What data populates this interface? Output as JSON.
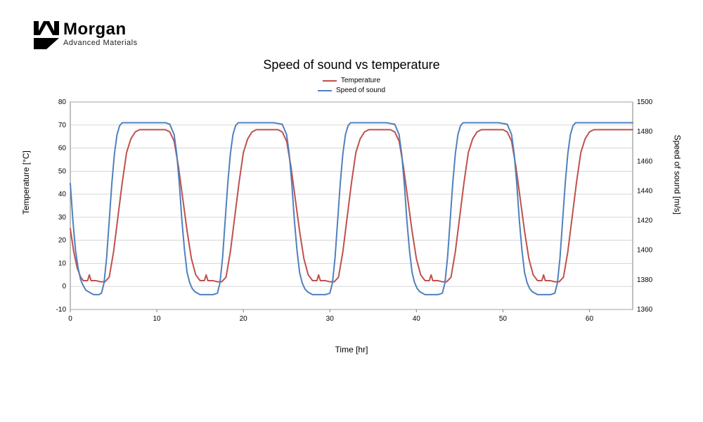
{
  "logo": {
    "name": "Morgan",
    "subtitle": "Advanced Materials"
  },
  "chart": {
    "type": "line",
    "title": "Speed of sound vs temperature",
    "title_fontsize": 18,
    "background_color": "#ffffff",
    "plot_border_color": "#808080",
    "grid_color": "#bfbfbf",
    "x_axis": {
      "label": "Time [hr]",
      "min": 0,
      "max": 65,
      "ticks": [
        0,
        10,
        20,
        30,
        40,
        50,
        60
      ],
      "label_fontsize": 12,
      "tick_fontsize": 10
    },
    "y_left": {
      "label": "Temperature [°C]",
      "min": -10,
      "max": 80,
      "ticks": [
        -10,
        0,
        10,
        20,
        30,
        40,
        50,
        60,
        70,
        80
      ],
      "label_fontsize": 12,
      "tick_fontsize": 10
    },
    "y_right": {
      "label": "Speed of sound [m/s]",
      "min": 1360,
      "max": 1500,
      "ticks": [
        1360,
        1380,
        1400,
        1420,
        1440,
        1460,
        1480,
        1500
      ],
      "label_fontsize": 12,
      "tick_fontsize": 10
    },
    "series": [
      {
        "name": "Temperature",
        "axis": "left",
        "color": "#c0504d",
        "line_width": 2,
        "data": [
          [
            0,
            25
          ],
          [
            0.4,
            15
          ],
          [
            0.8,
            8
          ],
          [
            1.2,
            4
          ],
          [
            1.5,
            2.5
          ],
          [
            2.0,
            2.5
          ],
          [
            2.2,
            5
          ],
          [
            2.4,
            2.5
          ],
          [
            3.0,
            2.5
          ],
          [
            3.5,
            2
          ],
          [
            4.0,
            2
          ],
          [
            4.5,
            4
          ],
          [
            5.0,
            15
          ],
          [
            5.5,
            30
          ],
          [
            6.0,
            45
          ],
          [
            6.5,
            58
          ],
          [
            7.0,
            64
          ],
          [
            7.5,
            67
          ],
          [
            8.0,
            68
          ],
          [
            8.5,
            68
          ],
          [
            9.0,
            68
          ],
          [
            9.5,
            68
          ],
          [
            10.0,
            68
          ],
          [
            10.5,
            68
          ],
          [
            11.0,
            68
          ],
          [
            11.5,
            67
          ],
          [
            12.0,
            63
          ],
          [
            12.5,
            52
          ],
          [
            13.0,
            38
          ],
          [
            13.5,
            24
          ],
          [
            14.0,
            12
          ],
          [
            14.5,
            5
          ],
          [
            15.0,
            2.5
          ],
          [
            15.5,
            2.5
          ],
          [
            15.7,
            5
          ],
          [
            15.9,
            2.5
          ],
          [
            16.5,
            2.5
          ],
          [
            17.0,
            2
          ],
          [
            17.5,
            2
          ],
          [
            18.0,
            4
          ],
          [
            18.5,
            15
          ],
          [
            19.0,
            30
          ],
          [
            19.5,
            45
          ],
          [
            20.0,
            58
          ],
          [
            20.5,
            64
          ],
          [
            21.0,
            67
          ],
          [
            21.5,
            68
          ],
          [
            22.0,
            68
          ],
          [
            22.5,
            68
          ],
          [
            23.0,
            68
          ],
          [
            23.5,
            68
          ],
          [
            24.0,
            68
          ],
          [
            24.5,
            67
          ],
          [
            25.0,
            63
          ],
          [
            25.5,
            52
          ],
          [
            26.0,
            38
          ],
          [
            26.5,
            24
          ],
          [
            27.0,
            12
          ],
          [
            27.5,
            5
          ],
          [
            28.0,
            2.5
          ],
          [
            28.5,
            2.5
          ],
          [
            28.7,
            5
          ],
          [
            28.9,
            2.5
          ],
          [
            29.5,
            2.5
          ],
          [
            30.0,
            2
          ],
          [
            30.5,
            2
          ],
          [
            31.0,
            4
          ],
          [
            31.5,
            15
          ],
          [
            32.0,
            30
          ],
          [
            32.5,
            45
          ],
          [
            33.0,
            58
          ],
          [
            33.5,
            64
          ],
          [
            34.0,
            67
          ],
          [
            34.5,
            68
          ],
          [
            35.0,
            68
          ],
          [
            35.5,
            68
          ],
          [
            36.0,
            68
          ],
          [
            36.5,
            68
          ],
          [
            37.0,
            68
          ],
          [
            37.5,
            67
          ],
          [
            38.0,
            63
          ],
          [
            38.5,
            52
          ],
          [
            39.0,
            38
          ],
          [
            39.5,
            24
          ],
          [
            40.0,
            12
          ],
          [
            40.5,
            5
          ],
          [
            41.0,
            2.5
          ],
          [
            41.5,
            2.5
          ],
          [
            41.7,
            5
          ],
          [
            41.9,
            2.5
          ],
          [
            42.5,
            2.5
          ],
          [
            43.0,
            2
          ],
          [
            43.5,
            2
          ],
          [
            44.0,
            4
          ],
          [
            44.5,
            15
          ],
          [
            45.0,
            30
          ],
          [
            45.5,
            45
          ],
          [
            46.0,
            58
          ],
          [
            46.5,
            64
          ],
          [
            47.0,
            67
          ],
          [
            47.5,
            68
          ],
          [
            48.0,
            68
          ],
          [
            48.5,
            68
          ],
          [
            49.0,
            68
          ],
          [
            49.5,
            68
          ],
          [
            50.0,
            68
          ],
          [
            50.5,
            67
          ],
          [
            51.0,
            63
          ],
          [
            51.5,
            52
          ],
          [
            52.0,
            38
          ],
          [
            52.5,
            24
          ],
          [
            53.0,
            12
          ],
          [
            53.5,
            5
          ],
          [
            54.0,
            2.5
          ],
          [
            54.5,
            2.5
          ],
          [
            54.7,
            5
          ],
          [
            54.9,
            2.5
          ],
          [
            55.5,
            2.5
          ],
          [
            56.0,
            2
          ],
          [
            56.5,
            2
          ],
          [
            57.0,
            4
          ],
          [
            57.5,
            15
          ],
          [
            58.0,
            30
          ],
          [
            58.5,
            45
          ],
          [
            59.0,
            58
          ],
          [
            59.5,
            64
          ],
          [
            60.0,
            67
          ],
          [
            60.5,
            68
          ],
          [
            61.0,
            68
          ],
          [
            61.5,
            68
          ],
          [
            62.0,
            68
          ],
          [
            62.5,
            68
          ],
          [
            63.0,
            68
          ],
          [
            63.5,
            68
          ],
          [
            64.0,
            68
          ],
          [
            64.5,
            68
          ],
          [
            65.0,
            68
          ]
        ]
      },
      {
        "name": "Speed of sound",
        "axis": "right",
        "color": "#4f81bd",
        "line_width": 2,
        "data": [
          [
            0,
            1445
          ],
          [
            0.3,
            1420
          ],
          [
            0.6,
            1400
          ],
          [
            0.9,
            1388
          ],
          [
            1.2,
            1380
          ],
          [
            1.5,
            1376
          ],
          [
            1.8,
            1373
          ],
          [
            2.1,
            1372
          ],
          [
            2.4,
            1371
          ],
          [
            2.7,
            1370
          ],
          [
            3.0,
            1370
          ],
          [
            3.3,
            1370
          ],
          [
            3.6,
            1371
          ],
          [
            3.9,
            1378
          ],
          [
            4.2,
            1395
          ],
          [
            4.5,
            1420
          ],
          [
            4.8,
            1445
          ],
          [
            5.1,
            1465
          ],
          [
            5.4,
            1478
          ],
          [
            5.7,
            1484
          ],
          [
            6.0,
            1486
          ],
          [
            7.0,
            1486
          ],
          [
            8.0,
            1486
          ],
          [
            9.0,
            1486
          ],
          [
            10.0,
            1486
          ],
          [
            11.0,
            1486
          ],
          [
            11.5,
            1485
          ],
          [
            12.0,
            1478
          ],
          [
            12.3,
            1465
          ],
          [
            12.6,
            1445
          ],
          [
            12.9,
            1420
          ],
          [
            13.2,
            1400
          ],
          [
            13.5,
            1385
          ],
          [
            13.8,
            1378
          ],
          [
            14.1,
            1374
          ],
          [
            14.4,
            1372
          ],
          [
            14.7,
            1371
          ],
          [
            15.0,
            1370
          ],
          [
            15.5,
            1370
          ],
          [
            16.0,
            1370
          ],
          [
            16.5,
            1370
          ],
          [
            17.0,
            1371
          ],
          [
            17.3,
            1378
          ],
          [
            17.6,
            1395
          ],
          [
            17.9,
            1420
          ],
          [
            18.2,
            1445
          ],
          [
            18.5,
            1465
          ],
          [
            18.8,
            1478
          ],
          [
            19.1,
            1484
          ],
          [
            19.4,
            1486
          ],
          [
            20.5,
            1486
          ],
          [
            21.5,
            1486
          ],
          [
            22.5,
            1486
          ],
          [
            23.5,
            1486
          ],
          [
            24.5,
            1485
          ],
          [
            25.0,
            1478
          ],
          [
            25.3,
            1465
          ],
          [
            25.6,
            1445
          ],
          [
            25.9,
            1420
          ],
          [
            26.2,
            1400
          ],
          [
            26.5,
            1385
          ],
          [
            26.8,
            1378
          ],
          [
            27.1,
            1374
          ],
          [
            27.4,
            1372
          ],
          [
            27.7,
            1371
          ],
          [
            28.0,
            1370
          ],
          [
            28.5,
            1370
          ],
          [
            29.0,
            1370
          ],
          [
            29.5,
            1370
          ],
          [
            30.0,
            1371
          ],
          [
            30.3,
            1378
          ],
          [
            30.6,
            1395
          ],
          [
            30.9,
            1420
          ],
          [
            31.2,
            1445
          ],
          [
            31.5,
            1465
          ],
          [
            31.8,
            1478
          ],
          [
            32.1,
            1484
          ],
          [
            32.4,
            1486
          ],
          [
            33.5,
            1486
          ],
          [
            34.5,
            1486
          ],
          [
            35.5,
            1486
          ],
          [
            36.5,
            1486
          ],
          [
            37.5,
            1485
          ],
          [
            38.0,
            1478
          ],
          [
            38.3,
            1465
          ],
          [
            38.6,
            1445
          ],
          [
            38.9,
            1420
          ],
          [
            39.2,
            1400
          ],
          [
            39.5,
            1385
          ],
          [
            39.8,
            1378
          ],
          [
            40.1,
            1374
          ],
          [
            40.4,
            1372
          ],
          [
            40.7,
            1371
          ],
          [
            41.0,
            1370
          ],
          [
            41.5,
            1370
          ],
          [
            42.0,
            1370
          ],
          [
            42.5,
            1370
          ],
          [
            43.0,
            1371
          ],
          [
            43.3,
            1378
          ],
          [
            43.6,
            1395
          ],
          [
            43.9,
            1420
          ],
          [
            44.2,
            1445
          ],
          [
            44.5,
            1465
          ],
          [
            44.8,
            1478
          ],
          [
            45.1,
            1484
          ],
          [
            45.4,
            1486
          ],
          [
            46.5,
            1486
          ],
          [
            47.5,
            1486
          ],
          [
            48.5,
            1486
          ],
          [
            49.5,
            1486
          ],
          [
            50.5,
            1485
          ],
          [
            51.0,
            1478
          ],
          [
            51.3,
            1465
          ],
          [
            51.6,
            1445
          ],
          [
            51.9,
            1420
          ],
          [
            52.2,
            1400
          ],
          [
            52.5,
            1385
          ],
          [
            52.8,
            1378
          ],
          [
            53.1,
            1374
          ],
          [
            53.4,
            1372
          ],
          [
            53.7,
            1371
          ],
          [
            54.0,
            1370
          ],
          [
            54.5,
            1370
          ],
          [
            55.0,
            1370
          ],
          [
            55.5,
            1370
          ],
          [
            56.0,
            1371
          ],
          [
            56.3,
            1378
          ],
          [
            56.6,
            1395
          ],
          [
            56.9,
            1420
          ],
          [
            57.2,
            1445
          ],
          [
            57.5,
            1465
          ],
          [
            57.8,
            1478
          ],
          [
            58.1,
            1484
          ],
          [
            58.4,
            1486
          ],
          [
            59.5,
            1486
          ],
          [
            60.5,
            1486
          ],
          [
            61.5,
            1486
          ],
          [
            62.5,
            1486
          ],
          [
            63.5,
            1486
          ],
          [
            64.5,
            1486
          ],
          [
            65.0,
            1486
          ]
        ]
      }
    ]
  }
}
